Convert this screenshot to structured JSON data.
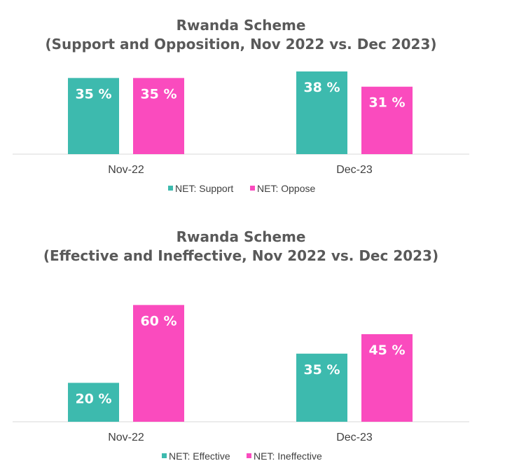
{
  "chart_data": [
    {
      "type": "bar",
      "title": "Rwanda Scheme",
      "subtitle": "(Support and Opposition, Nov 2022 vs. Dec 2023)",
      "categories": [
        "Nov-22",
        "Dec-23"
      ],
      "series": [
        {
          "name": "NET: Support",
          "values": [
            35,
            38
          ],
          "color": "#3DBAAE",
          "labels": [
            "35 %",
            "38 %"
          ]
        },
        {
          "name": "NET: Oppose",
          "values": [
            35,
            31
          ],
          "color": "#FA4BBE",
          "labels": [
            "35 %",
            "31 %"
          ]
        }
      ],
      "ylim": [
        0,
        38
      ],
      "grid": false,
      "legend": "bottom"
    },
    {
      "type": "bar",
      "title": "Rwanda Scheme",
      "subtitle": "(Effective and Ineffective, Nov 2022 vs. Dec 2023)",
      "categories": [
        "Nov-22",
        "Dec-23"
      ],
      "series": [
        {
          "name": "NET: Effective",
          "values": [
            20,
            35
          ],
          "color": "#3DBAAE",
          "labels": [
            "20 %",
            "35 %"
          ]
        },
        {
          "name": "NET: Ineffective",
          "values": [
            60,
            45
          ],
          "color": "#FA4BBE",
          "labels": [
            "60 %",
            "45 %"
          ]
        }
      ],
      "ylim": [
        0,
        63
      ],
      "grid": false,
      "legend": "bottom"
    }
  ]
}
